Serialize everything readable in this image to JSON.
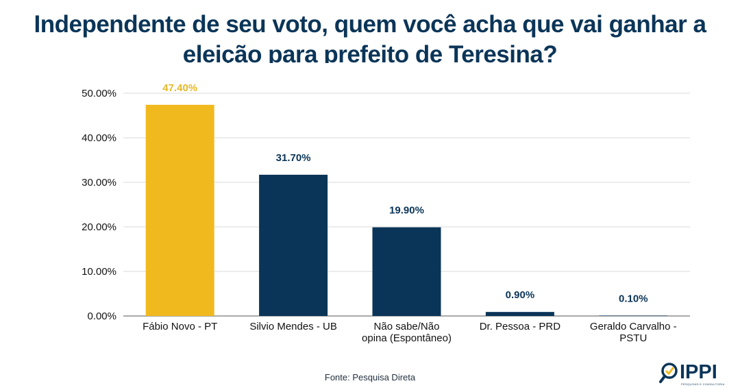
{
  "title_lines": [
    "Independente de seu voto, quem você acha que vai ganhar a",
    "eleição para prefeito de Teresina?"
  ],
  "source": "Fonte: Pesquisa Direta",
  "logo": {
    "name": "IPPI",
    "tagline": "PESQUISAS E CONSULTORIA"
  },
  "colors": {
    "highlight": "#f0b91e",
    "primary": "#0b3558",
    "highlight_label": "#e6b82a",
    "grid": "#d9d9d9"
  },
  "chart_data": {
    "type": "bar",
    "title": "Independente de seu voto, quem você acha que vai ganhar a eleição para prefeito de Teresina?",
    "categories": [
      [
        "Fábio Novo - PT"
      ],
      [
        "Silvio Mendes - UB"
      ],
      [
        "Não sabe/Não",
        "opina (Espontâneo)"
      ],
      [
        "Dr. Pessoa - PRD"
      ],
      [
        "Geraldo Carvalho -",
        "PSTU"
      ]
    ],
    "values": [
      47.4,
      31.7,
      19.9,
      0.9,
      0.1
    ],
    "data_labels": [
      "47.40%",
      "31.70%",
      "19.90%",
      "0.90%",
      "0.10%"
    ],
    "highlighted_index": 0,
    "ylim": [
      0,
      50
    ],
    "yticks": [
      0,
      10,
      20,
      30,
      40,
      50
    ],
    "ytick_labels": [
      "0.00%",
      "10.00%",
      "20.00%",
      "30.00%",
      "40.00%",
      "50.00%"
    ],
    "grid": true,
    "xlabel": "",
    "ylabel": ""
  }
}
